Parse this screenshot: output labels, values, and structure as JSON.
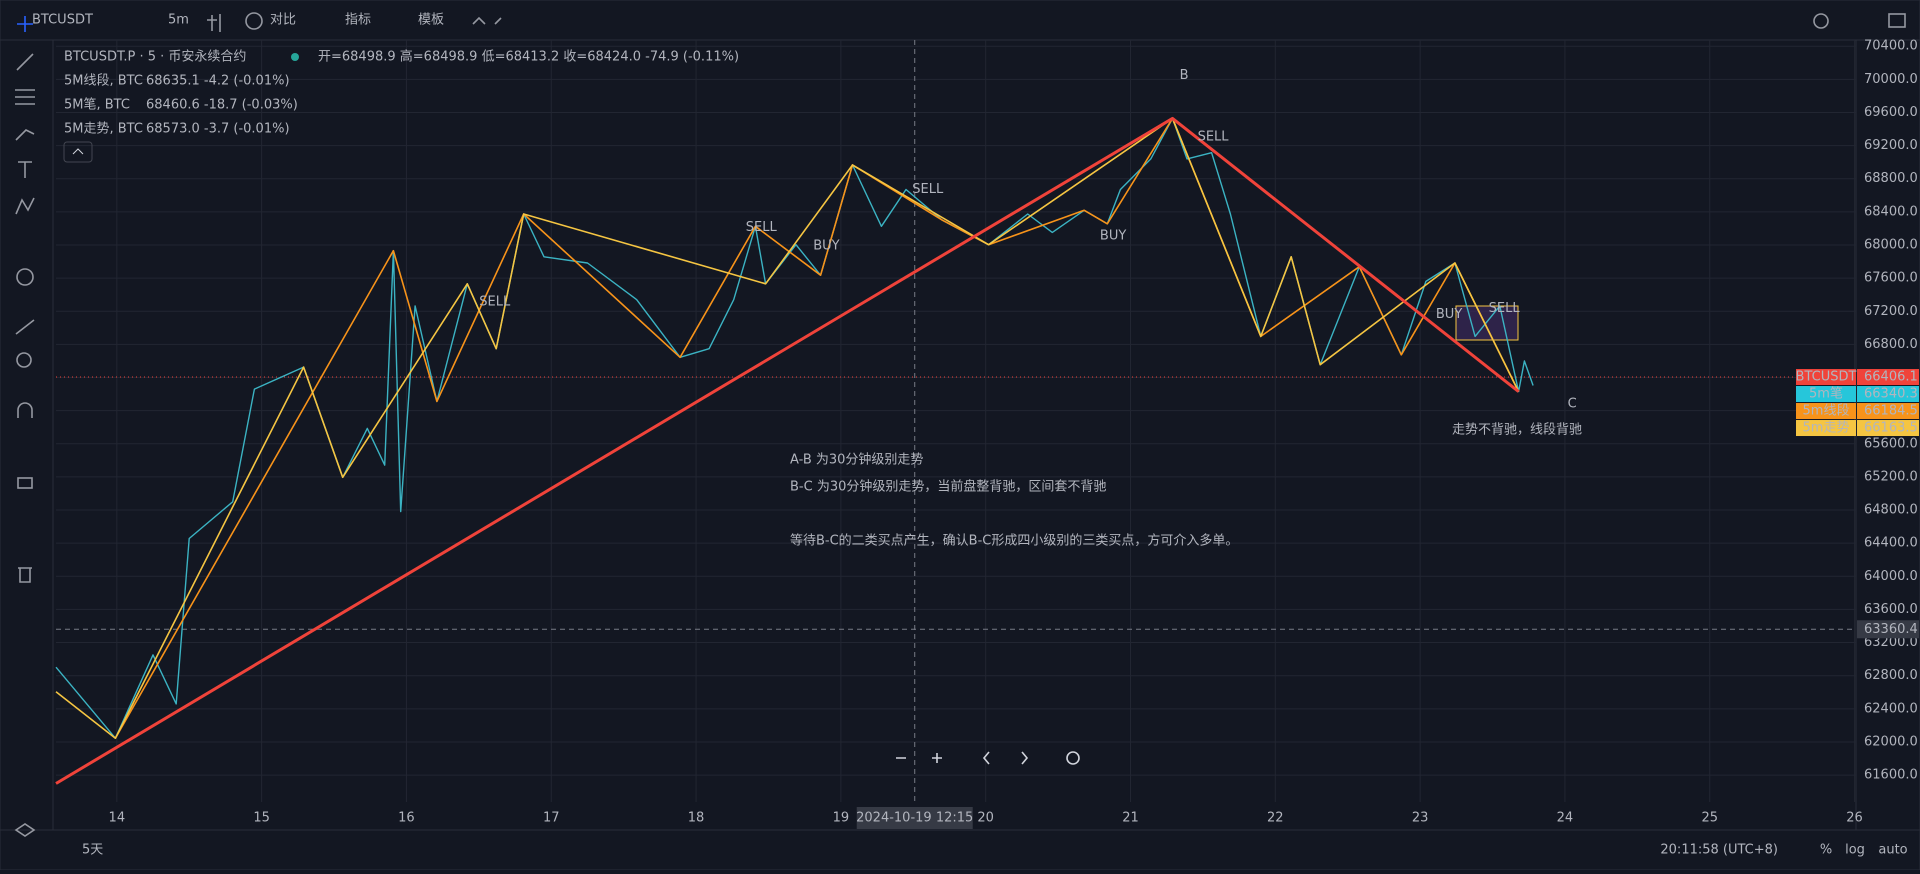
{
  "toolbar": {
    "symbol": "BTCUSDT",
    "interval": "5m",
    "compare": "对比",
    "indicators": "指标",
    "templates": "模板"
  },
  "legend": {
    "title": "BTCUSDT.P · 5 · 币安永续合约",
    "ohlc": "开=68498.9 高=68498.9 低=68413.2 收=68424.0 -74.9 (-0.11%)",
    "indicators": [
      {
        "name": "5M线段, BTC",
        "value": "68635.1  -4.2 (-0.01%)",
        "color": "#f7931a"
      },
      {
        "name": "5M笔, BTC",
        "value": "68460.6  -18.7 (-0.03%)",
        "color": "#26c6da"
      },
      {
        "name": "5M走势, BTC",
        "value": "68573.0  -3.7 (-0.01%)",
        "color": "#f5c542"
      }
    ]
  },
  "chart_data": {
    "type": "line",
    "xlim": [
      13.58,
      26.01
    ],
    "ylim": [
      61275,
      70475
    ],
    "xticks": [
      14,
      15,
      16,
      17,
      18,
      19,
      20,
      21,
      22,
      23,
      24,
      25,
      26
    ],
    "yticks": [
      {
        "value": 61600,
        "label": "61600.0"
      },
      {
        "value": 62000,
        "label": "62000.0"
      },
      {
        "value": 62400,
        "label": "62400.0"
      },
      {
        "value": 62800,
        "label": "62800.0"
      },
      {
        "value": 63200,
        "label": "63200.0"
      },
      {
        "value": 63600,
        "label": "63600.0"
      },
      {
        "value": 64000,
        "label": "64000.0"
      },
      {
        "value": 64400,
        "label": "64400.0"
      },
      {
        "value": 64800,
        "label": "64800.0"
      },
      {
        "value": 65200,
        "label": "65200.0"
      },
      {
        "value": 65600,
        "label": "65600.0"
      },
      {
        "value": 66000,
        "label": "66000.0"
      },
      {
        "value": 66400,
        "label": "66400.0"
      },
      {
        "value": 66800,
        "label": "66800.0"
      },
      {
        "value": 67200,
        "label": "67200.0"
      },
      {
        "value": 67600,
        "label": "67600.0"
      },
      {
        "value": 68000,
        "label": "68000.0"
      },
      {
        "value": 68400,
        "label": "68400.0"
      },
      {
        "value": 68800,
        "label": "68800.0"
      },
      {
        "value": 69200,
        "label": "69200.0"
      },
      {
        "value": 69600,
        "label": "69600.0"
      },
      {
        "value": 70000,
        "label": "70000.0"
      },
      {
        "value": 70400,
        "label": "70400.0"
      }
    ],
    "grid": true,
    "series": [
      {
        "name": "BTCUSDT",
        "color": "#3bb3c3",
        "x": [
          13.58,
          13.99,
          14.25,
          14.41,
          14.5,
          14.8,
          14.95,
          15.29,
          15.56,
          15.73,
          15.85,
          15.91,
          15.96,
          16.06,
          16.21,
          16.42,
          16.62,
          16.81,
          16.95,
          17.25,
          17.59,
          17.89,
          18.09,
          18.26,
          18.41,
          18.48,
          18.69,
          18.86,
          19.08,
          19.28,
          19.45,
          19.7,
          20.02,
          20.29,
          20.46,
          20.68,
          20.84,
          20.93,
          21.14,
          21.29,
          21.39,
          21.56,
          21.69,
          21.9,
          22.11,
          22.31,
          22.58,
          22.87,
          23.04,
          23.24,
          23.38,
          23.55,
          23.68,
          23.72,
          23.78
        ],
        "values": [
          62903,
          62045,
          63051,
          62459,
          64456,
          64899,
          66260,
          66526,
          65195,
          65786,
          65343,
          67931,
          64781,
          67265,
          66112,
          67531,
          66748,
          68374,
          67857,
          67783,
          67339,
          66644,
          66748,
          67339,
          68226,
          67531,
          68004,
          67635,
          68966,
          68226,
          68670,
          68300,
          68004,
          68374,
          68152,
          68419,
          68256,
          68670,
          69040,
          69528,
          69040,
          69114,
          68374,
          66896,
          67857,
          66555,
          67738,
          66674,
          67560,
          67783,
          66896,
          67265,
          66230,
          66600,
          66304
        ]
      },
      {
        "name": "5m笔",
        "color": "#f5c542",
        "x": [
          13.58,
          13.99,
          15.29,
          15.56,
          16.42,
          16.62,
          16.81,
          18.48,
          19.08,
          20.02,
          21.29,
          21.9,
          22.11,
          22.31,
          23.24,
          23.68
        ],
        "values": [
          62607,
          62045,
          66526,
          65195,
          67531,
          66748,
          68374,
          67531,
          68966,
          68004,
          69528,
          66896,
          67857,
          66555,
          67783,
          66230
        ]
      },
      {
        "name": "5m线段",
        "color": "#f7931a",
        "x": [
          13.99,
          15.91,
          16.21,
          16.81,
          17.89,
          18.41,
          18.86,
          19.08,
          19.7,
          20.02,
          20.68,
          20.84,
          21.29,
          21.9,
          22.58,
          22.87,
          23.24,
          23.68
        ],
        "values": [
          62045,
          67931,
          66112,
          68374,
          66644,
          68226,
          67635,
          68966,
          68300,
          68004,
          68419,
          68256,
          69528,
          66896,
          67738,
          66674,
          67783,
          66230
        ]
      },
      {
        "color": "#f0433a",
        "x": [
          13.58,
          21.29,
          23.68
        ],
        "values": [
          61498,
          69528,
          66230
        ]
      }
    ],
    "price_labels": [
      {
        "label": "BTCUSDT",
        "value": 66406.1,
        "color": "#f0433a"
      },
      {
        "label": "5m笔",
        "value": 66340.3,
        "color": "#26c6da"
      },
      {
        "label": "5m线段",
        "value": 66184.5,
        "color": "#f7931a"
      },
      {
        "label": "5m走势",
        "value": 66163.5,
        "color": "#f5c542"
      }
    ],
    "crosshair": {
      "price": 63360.4,
      "x": 19.51,
      "x_label": "2024-10-19   12:15"
    },
    "signals": [
      {
        "text": "SELL",
        "x": 16.61,
        "y": 67310
      },
      {
        "text": "SELL",
        "x": 18.45,
        "y": 68210
      },
      {
        "text": "SELL",
        "x": 19.6,
        "y": 68670
      },
      {
        "text": "SELL",
        "x": 21.57,
        "y": 69306
      },
      {
        "text": "BUY",
        "x": 18.9,
        "y": 67990
      },
      {
        "text": "BUY",
        "x": 20.88,
        "y": 68110
      },
      {
        "text": "BUY",
        "x": 23.2,
        "y": 67160
      },
      {
        "text": "SELL",
        "x": 23.58,
        "y": 67235
      }
    ],
    "points": [
      {
        "text": "B",
        "x": 21.37,
        "y": 70045
      },
      {
        "text": "C",
        "x": 24.05,
        "y": 66083
      }
    ]
  },
  "annotations": {
    "note": [
      "A-B 为30分钟级别走势",
      "B-C 为30分钟级别走势，当前盘整背驰，区间套不背驰",
      "等待B-C的二类买点产生，确认B-C形成四小级别的三类买点，方可介入多单。"
    ],
    "divergence": "走势不背驰，线段背驰"
  },
  "bottom": {
    "range": "5天",
    "clock": "20:11:58 (UTC+8)",
    "percent": "%",
    "log": "log",
    "auto": "auto"
  }
}
